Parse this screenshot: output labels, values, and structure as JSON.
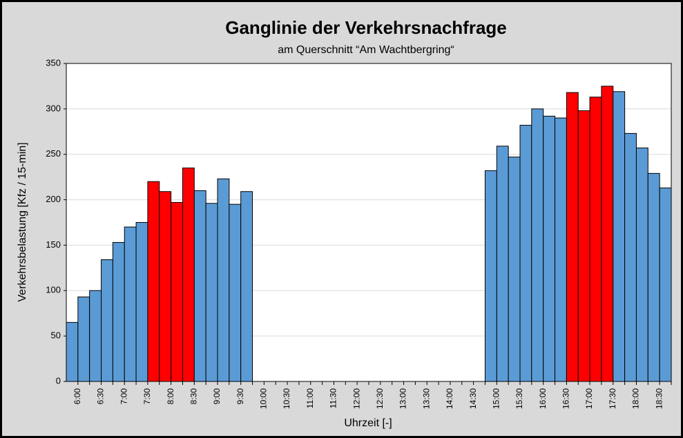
{
  "chart_data": {
    "type": "bar",
    "title": "Ganglinie der Verkehrsnachfrage",
    "subtitle": "am Querschnitt “Am Wachtbergring“",
    "x_label": "Uhrzeit [-]",
    "y_label": "Verkehrsbelastung [Kfz / 15-min]",
    "categories": [
      "6:00",
      null,
      "6:30",
      null,
      "7:00",
      null,
      "7:30",
      null,
      "8:00",
      null,
      "8:30",
      null,
      "9:00",
      null,
      "9:30",
      null,
      "10:00",
      null,
      "10:30",
      null,
      "11:00",
      null,
      "11:30",
      null,
      "12:00",
      null,
      "12:30",
      null,
      "13:00",
      null,
      "13:30",
      null,
      "14:00",
      null,
      "14:30",
      null,
      "15:00",
      null,
      "15:30",
      null,
      "16:00",
      null,
      "16:30",
      null,
      "17:00",
      null,
      "17:30",
      null,
      "18:00",
      null,
      "18:30",
      null
    ],
    "values": [
      65,
      93,
      100,
      134,
      153,
      170,
      175,
      220,
      209,
      197,
      235,
      210,
      196,
      223,
      195,
      209,
      null,
      null,
      null,
      null,
      null,
      null,
      null,
      null,
      null,
      null,
      null,
      null,
      null,
      null,
      null,
      null,
      null,
      null,
      null,
      null,
      232,
      259,
      247,
      282,
      300,
      292,
      290,
      318,
      298,
      313,
      325,
      319,
      273,
      257,
      229,
      213
    ],
    "colors": [
      "#5b9bd5",
      "#5b9bd5",
      "#5b9bd5",
      "#5b9bd5",
      "#5b9bd5",
      "#5b9bd5",
      "#5b9bd5",
      "#ff0000",
      "#ff0000",
      "#ff0000",
      "#ff0000",
      "#5b9bd5",
      "#5b9bd5",
      "#5b9bd5",
      "#5b9bd5",
      "#5b9bd5",
      null,
      null,
      null,
      null,
      null,
      null,
      null,
      null,
      null,
      null,
      null,
      null,
      null,
      null,
      null,
      null,
      null,
      null,
      null,
      null,
      "#5b9bd5",
      "#5b9bd5",
      "#5b9bd5",
      "#5b9bd5",
      "#5b9bd5",
      "#5b9bd5",
      "#5b9bd5",
      "#ff0000",
      "#ff0000",
      "#ff0000",
      "#ff0000",
      "#5b9bd5",
      "#5b9bd5",
      "#5b9bd5",
      "#5b9bd5",
      "#5b9bd5"
    ],
    "ylim": [
      0,
      350
    ],
    "yticks": [
      0,
      50,
      100,
      150,
      200,
      250,
      300,
      350
    ],
    "grid": true
  }
}
